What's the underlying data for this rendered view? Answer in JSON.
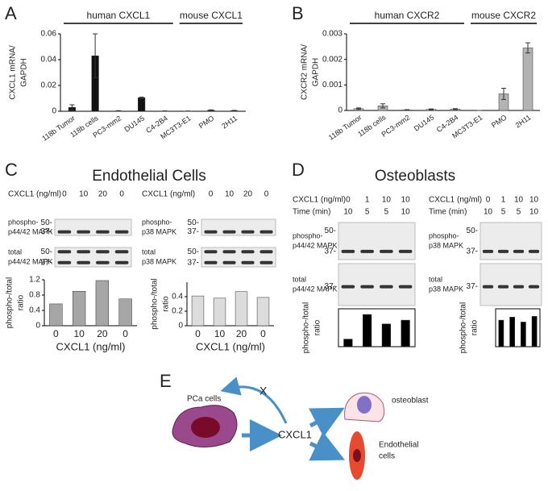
{
  "chart_data": [
    {
      "type": "bar",
      "ylabel": [
        "CXCL1 mRNA/",
        "GAPDH"
      ],
      "group_labels": [
        "human CXCL1",
        "mouse CXCL1"
      ],
      "categories": [
        "118b Tumor",
        "118b cells",
        "PC3-mm2",
        "DU145",
        "C4-2B4",
        "MC3T3-E1",
        "PMO",
        "2H11"
      ],
      "series": [
        {
          "color": "#111111",
          "values": [
            0.003,
            0.043,
            0.0003,
            0.0105,
            0.0002,
            0.0001,
            0.0008,
            0.0005
          ],
          "errors": [
            0.002,
            0.017,
            0.0002,
            0.0005,
            0.0001,
            0.0001,
            0.0003,
            0.0002
          ]
        }
      ],
      "ylim": [
        0,
        0.06
      ],
      "yticks": [
        0,
        0.02,
        0.04,
        0.06
      ]
    },
    {
      "type": "bar",
      "ylabel": [
        "CXCR2 mRNA/",
        "GAPDH"
      ],
      "group_labels": [
        "human CXCR2",
        "mouse CXCR2"
      ],
      "categories": [
        "118b Tumor",
        "118b cells",
        "PC3-mm2",
        "DU145",
        "C4-2B4",
        "MC3T3-E1",
        "PMO",
        "2H11"
      ],
      "series": [
        {
          "color": "#b3b3b3",
          "values": [
            7e-05,
            0.00018,
            2e-05,
            4e-05,
            5e-05,
            0,
            0.00065,
            0.00245
          ],
          "errors": [
            3e-05,
            8e-05,
            1e-05,
            2e-05,
            2e-05,
            0,
            0.00022,
            0.0002
          ]
        }
      ],
      "ylim": [
        0,
        0.003
      ],
      "yticks": [
        0,
        0.001,
        0.002,
        0.003
      ]
    },
    {
      "type": "bar",
      "ylabel": [
        "phospho-/total",
        "ratio"
      ],
      "xlabel": "CXCL1 (ng/ml)",
      "categories": [
        "0",
        "10",
        "20",
        "0"
      ],
      "series": [
        {
          "color": "#a6a6a6",
          "values": [
            0.57,
            0.9,
            1.18,
            0.7
          ]
        }
      ],
      "ylim": [
        0,
        1.2
      ],
      "yticks": [
        0,
        0.4,
        0.8,
        1.2
      ]
    },
    {
      "type": "bar",
      "ylabel": [
        "phospho-/total",
        "ratio"
      ],
      "xlabel": "CXCL1 (ng/ml)",
      "categories": [
        "0",
        "10",
        "20",
        "0"
      ],
      "series": [
        {
          "color": "#dcdcdc",
          "values": [
            0.41,
            0.38,
            0.47,
            0.39
          ]
        }
      ],
      "ylim": [
        0,
        0.6
      ],
      "yticks": [
        0,
        0.2,
        0.4
      ]
    },
    {
      "type": "bar",
      "ylabel": [
        "phospho-/total",
        "ratio"
      ],
      "series": [
        {
          "color": "#000000",
          "values": [
            0.2,
            0.85,
            0.6,
            0.7
          ]
        }
      ],
      "ylim": [
        0,
        1
      ]
    },
    {
      "type": "bar",
      "ylabel": [
        "phospho-/total",
        "ratio"
      ],
      "series": [
        {
          "color": "#000000",
          "values": [
            0.7,
            0.78,
            0.65,
            0.8
          ]
        }
      ],
      "ylim": [
        0,
        1
      ]
    }
  ],
  "panels": {
    "letters": [
      "A",
      "B",
      "C",
      "D",
      "E"
    ],
    "titles": [
      "Endothelial Cells",
      "Osteoblasts"
    ]
  },
  "blots": [
    {
      "header": [
        {
          "label": "CXCL1 (ng/ml)",
          "values": [
            0,
            10,
            20,
            0
          ]
        }
      ],
      "rows": [
        {
          "label": [
            "phospho-",
            "p44/42 MAPK"
          ],
          "markers": [
            "50-",
            "37-"
          ]
        },
        {
          "label": [
            "total",
            "p44/42 MAPK"
          ],
          "markers": [
            "50-",
            "37-"
          ]
        }
      ]
    },
    {
      "header": [
        {
          "label": "CXCL1 (ng/ml)",
          "values": [
            0,
            10,
            20,
            0
          ]
        }
      ],
      "rows": [
        {
          "label": [
            "phospho-",
            "p38 MAPK"
          ],
          "markers": [
            "50-",
            "37-"
          ]
        },
        {
          "label": [
            "total",
            "p38 MAPK"
          ],
          "markers": [
            "50-",
            "37-"
          ]
        }
      ]
    },
    {
      "header": [
        {
          "label": "CXCL1 (ng/ml)",
          "values": [
            0,
            1,
            10,
            10
          ]
        },
        {
          "label": "Time (min)",
          "values": [
            10,
            5,
            5,
            10
          ]
        }
      ],
      "rows": [
        {
          "label": [
            "phospho-",
            "p44/42 MAPK"
          ],
          "markers": [
            "50-",
            "37-"
          ]
        },
        {
          "label": [
            "total",
            "p44/42 MAPK"
          ],
          "markers": [
            "37-"
          ]
        }
      ]
    },
    {
      "header": [
        {
          "label": "CXCL1 (ng/ml)",
          "values": [
            0,
            1,
            10,
            10
          ]
        },
        {
          "label": "Time (min)",
          "values": [
            10,
            5,
            5,
            10
          ]
        }
      ],
      "rows": [
        {
          "label": [
            "phospho-",
            "p38 MAPK"
          ],
          "markers": [
            "50-",
            "37-"
          ]
        },
        {
          "label": [
            "total",
            "p38 MAPK"
          ],
          "markers": [
            "37-"
          ]
        }
      ]
    }
  ],
  "diagram": {
    "source": "PCa cells",
    "factor": "CXCL1",
    "block": "X",
    "targets": [
      "osteoblast",
      [
        "Endothelial",
        "cells"
      ]
    ]
  }
}
